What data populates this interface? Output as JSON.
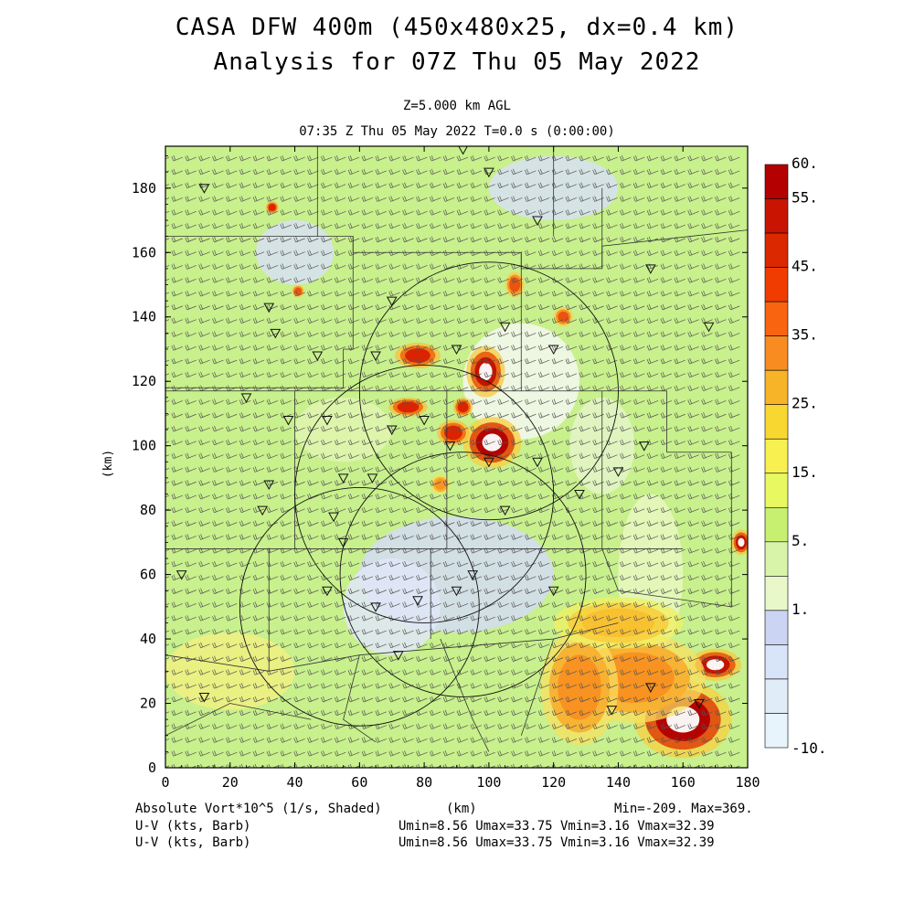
{
  "title_line1": "CASA DFW 400m (450x480x25, dx=0.4 km)",
  "title_line2": "Analysis for 07Z Thu 05 May 2022",
  "level_label": "Z=5.000 km AGL",
  "time_label": "07:35 Z Thu 05 May 2022    T=0.0 s (0:00:00)",
  "axes": {
    "xlabel": "(km)",
    "ylabel": "(km)",
    "xlim": [
      0,
      180
    ],
    "ylim": [
      0,
      193
    ],
    "xticks": [
      "0",
      "20",
      "40",
      "60",
      "80",
      "100",
      "120",
      "140",
      "160",
      "180"
    ],
    "yticks": [
      "0",
      "20",
      "40",
      "60",
      "80",
      "100",
      "120",
      "140",
      "160",
      "180"
    ]
  },
  "colorbar": {
    "labels": [
      "60.",
      "55.",
      "45.",
      "35.",
      "25.",
      "15.",
      "5.",
      "1.",
      "-10."
    ],
    "colors": [
      "#b40000",
      "#c81400",
      "#dc2800",
      "#f03c00",
      "#f86410",
      "#f88c20",
      "#f8b428",
      "#f8d830",
      "#f8f050",
      "#e8f860",
      "#c8f070",
      "#d8f4a8",
      "#e8f8c8",
      "#ccd4f4",
      "#d8e4f8",
      "#e0ecf8",
      "#e8f4fc"
    ]
  },
  "footer": {
    "field_label": "Absolute Vort*10^5 (1/s, Shaded)",
    "xunit": "(km)",
    "minmax": "Min=-209. Max=369.",
    "barb1_label": "U-V (kts, Barb)",
    "barb1_stats": "Umin=8.56 Umax=33.75 Vmin=3.16 Vmax=32.39",
    "barb2_label": "U-V (kts, Barb)",
    "barb2_stats": "Umin=8.56 Umax=33.75 Vmin=3.16 Vmax=32.39"
  },
  "map_data": {
    "radar_circles": [
      {
        "cx": 100,
        "cy": 117,
        "r": 40
      },
      {
        "cx": 80,
        "cy": 85,
        "r": 40
      },
      {
        "cx": 92,
        "cy": 60,
        "r": 38
      },
      {
        "cx": 60,
        "cy": 50,
        "r": 37
      }
    ],
    "storm_cells": [
      {
        "x": 101,
        "y": 101,
        "rx": 9,
        "ry": 8,
        "level": 60
      },
      {
        "x": 99,
        "y": 123,
        "rx": 6,
        "ry": 8,
        "level": 55
      },
      {
        "x": 78,
        "y": 128,
        "rx": 7,
        "ry": 4,
        "level": 45
      },
      {
        "x": 75,
        "y": 112,
        "rx": 6,
        "ry": 3,
        "level": 45
      },
      {
        "x": 92,
        "y": 112,
        "rx": 3,
        "ry": 3,
        "level": 45
      },
      {
        "x": 108,
        "y": 150,
        "rx": 3,
        "ry": 4,
        "level": 35
      },
      {
        "x": 123,
        "y": 140,
        "rx": 3,
        "ry": 3,
        "level": 35
      },
      {
        "x": 33,
        "y": 174,
        "rx": 2,
        "ry": 2,
        "level": 45
      },
      {
        "x": 41,
        "y": 148,
        "rx": 2,
        "ry": 2,
        "level": 35
      },
      {
        "x": 89,
        "y": 104,
        "rx": 5,
        "ry": 4,
        "level": 45
      },
      {
        "x": 85,
        "y": 88,
        "rx": 3,
        "ry": 3,
        "level": 25
      },
      {
        "x": 160,
        "y": 15,
        "rx": 15,
        "ry": 12,
        "level": 60
      },
      {
        "x": 170,
        "y": 32,
        "rx": 8,
        "ry": 5,
        "level": 55
      },
      {
        "x": 178,
        "y": 70,
        "rx": 3,
        "ry": 4,
        "level": 55
      },
      {
        "x": 145,
        "y": 28,
        "rx": 22,
        "ry": 14,
        "level": 25
      },
      {
        "x": 128,
        "y": 25,
        "rx": 12,
        "ry": 18,
        "level": 25
      },
      {
        "x": 140,
        "y": 45,
        "rx": 20,
        "ry": 8,
        "level": 15
      }
    ]
  }
}
